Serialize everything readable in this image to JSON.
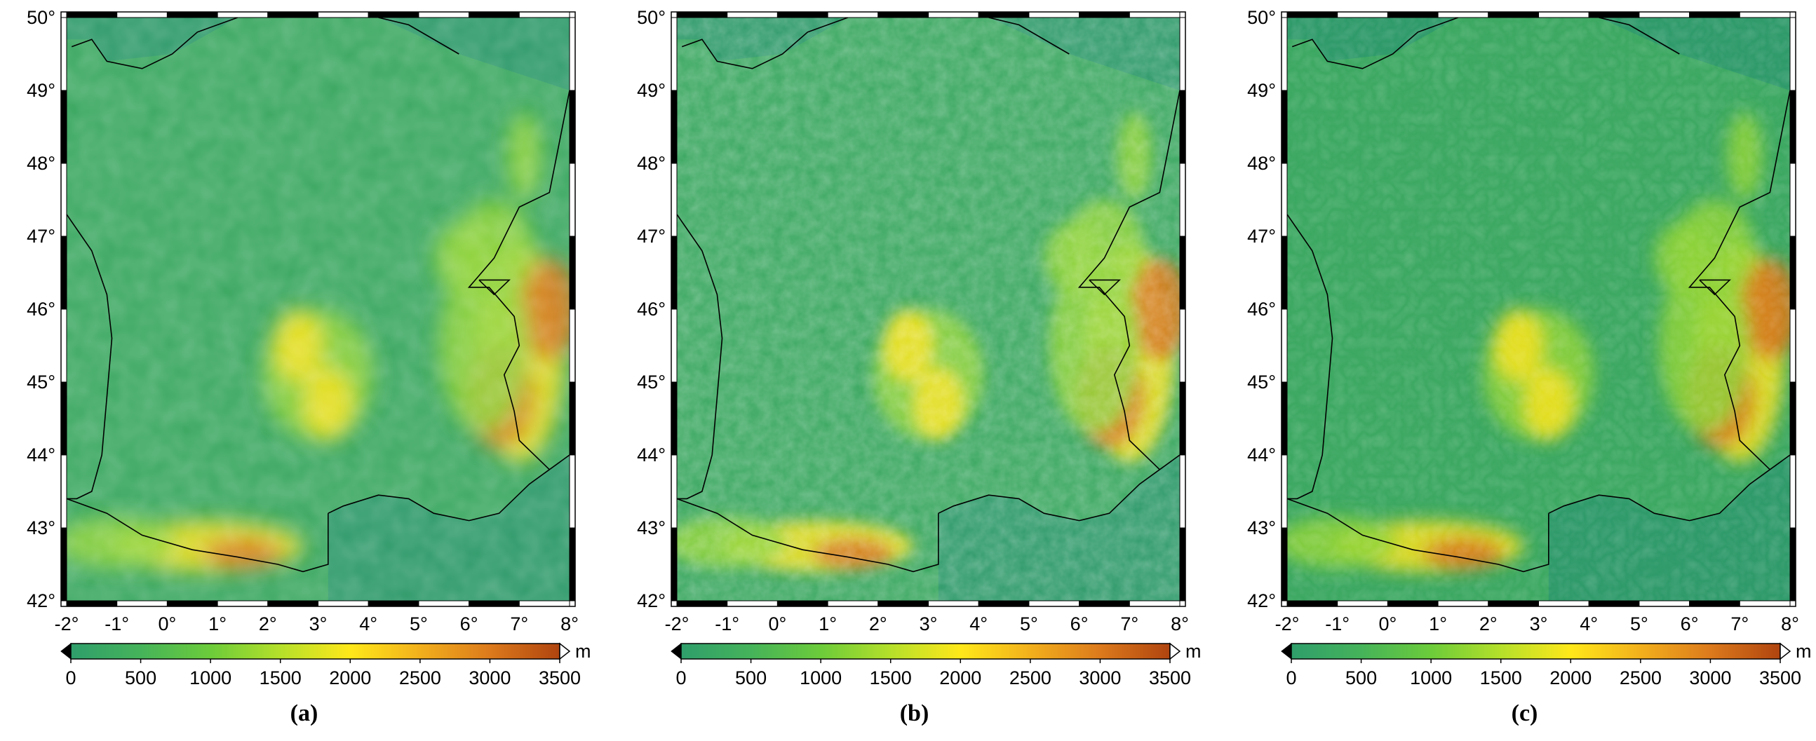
{
  "figure": {
    "lon_ticks": [
      "-2°",
      "-1°",
      "0°",
      "1°",
      "2°",
      "3°",
      "4°",
      "5°",
      "6°",
      "7°",
      "8°"
    ],
    "lat_ticks": [
      "42°",
      "43°",
      "44°",
      "45°",
      "46°",
      "47°",
      "48°",
      "49°",
      "50°"
    ],
    "lon_range": [
      -2,
      8
    ],
    "lat_range": [
      42,
      50
    ],
    "colorbar": {
      "ticks": [
        "0",
        "500",
        "1000",
        "1500",
        "2000",
        "2500",
        "3000",
        "3500"
      ],
      "range": [
        0,
        3500
      ],
      "unit": "m",
      "colors": [
        "#2f9e6b",
        "#45b35a",
        "#6ccc3a",
        "#b5e02a",
        "#ffe81a",
        "#f2b01c",
        "#dc7a1c",
        "#b0440f"
      ]
    },
    "colors": {
      "sea": "#2e9a6a",
      "lowland": "#3daa60",
      "mid": "#8fd43a",
      "high": "#f5e21f",
      "peak": "#d5741a"
    },
    "panels": [
      {
        "id": "a",
        "label": "(a)"
      },
      {
        "id": "b",
        "label": "(b)"
      },
      {
        "id": "c",
        "label": "(c)"
      }
    ]
  }
}
